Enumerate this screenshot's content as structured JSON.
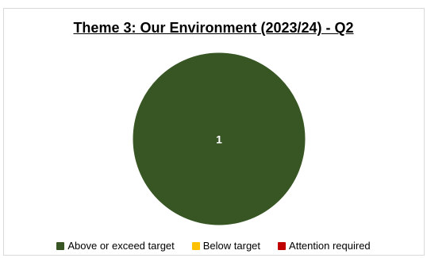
{
  "chart_data": {
    "type": "pie",
    "title": "Theme 3: Our Environment (2023/24) - Q2",
    "categories": [
      "Above or exceed target",
      "Below target",
      "Attention required"
    ],
    "values": [
      1,
      0,
      0
    ],
    "data_labels": [
      "1",
      "",
      ""
    ],
    "colors": [
      "#375623",
      "#ffc000",
      "#c00000"
    ],
    "legend_position": "bottom"
  }
}
